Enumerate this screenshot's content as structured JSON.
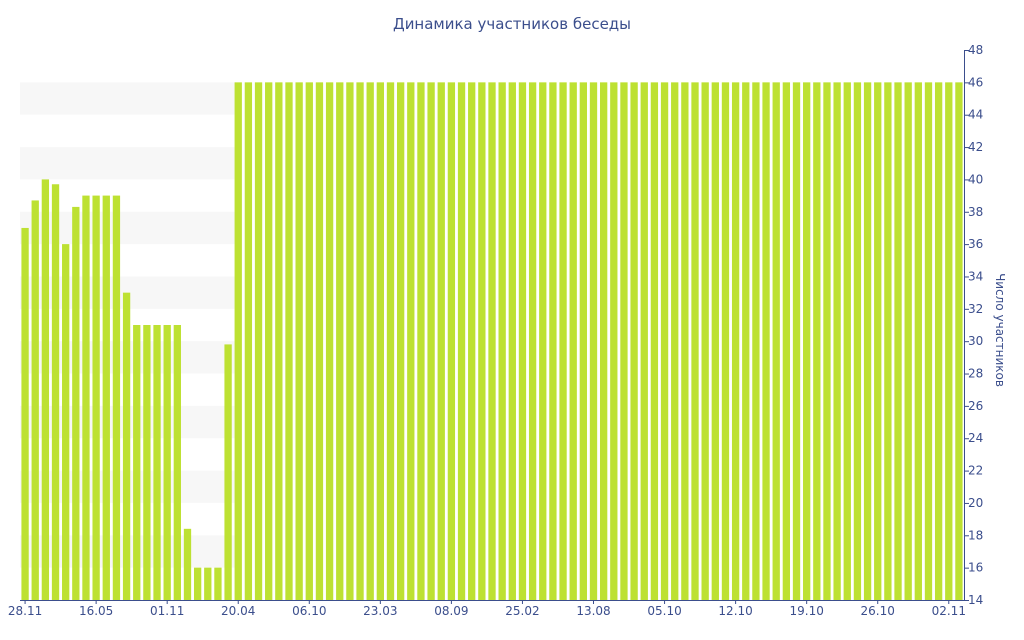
{
  "chart_data": {
    "type": "bar",
    "title": "Динамика участников беседы",
    "xlabel": "",
    "ylabel": "Число участников",
    "ylim": [
      14,
      48
    ],
    "y_ticks": [
      14,
      16,
      18,
      20,
      22,
      24,
      26,
      28,
      30,
      32,
      34,
      36,
      38,
      40,
      42,
      44,
      46,
      48
    ],
    "x_tick_labels": [
      {
        "index": 0,
        "label": "28.11"
      },
      {
        "index": 7,
        "label": "16.05"
      },
      {
        "index": 14,
        "label": "01.11"
      },
      {
        "index": 21,
        "label": "20.04"
      },
      {
        "index": 28,
        "label": "06.10"
      },
      {
        "index": 35,
        "label": "23.03"
      },
      {
        "index": 42,
        "label": "08.09"
      },
      {
        "index": 49,
        "label": "25.02"
      },
      {
        "index": 56,
        "label": "13.08"
      },
      {
        "index": 63,
        "label": "05.10"
      },
      {
        "index": 70,
        "label": "12.10"
      },
      {
        "index": 77,
        "label": "19.10"
      },
      {
        "index": 84,
        "label": "26.10"
      },
      {
        "index": 91,
        "label": "02.11"
      }
    ],
    "colors": {
      "bar": "#bde132",
      "text": "#3b4e8c",
      "stripe": "#f7f7f7"
    },
    "grid": "alternating-bands",
    "y_axis_position": "right",
    "values": [
      37,
      38.7,
      40,
      39.7,
      36,
      38.3,
      39,
      39,
      39,
      39,
      33,
      31,
      31,
      31,
      31,
      31,
      18.4,
      16,
      16,
      16,
      29.8,
      46,
      46,
      46,
      46,
      46,
      46,
      46,
      46,
      46,
      46,
      46,
      46,
      46,
      46,
      46,
      46,
      46,
      46,
      46,
      46,
      46,
      46,
      46,
      46,
      46,
      46,
      46,
      46,
      46,
      46,
      46,
      46,
      46,
      46,
      46,
      46,
      46,
      46,
      46,
      46,
      46,
      46,
      46,
      46,
      46,
      46,
      46,
      46,
      46,
      46,
      46,
      46,
      46,
      46,
      46,
      46,
      46,
      46,
      46,
      46,
      46,
      46,
      46,
      46,
      46,
      46,
      46,
      46,
      46,
      46,
      46,
      46
    ]
  }
}
